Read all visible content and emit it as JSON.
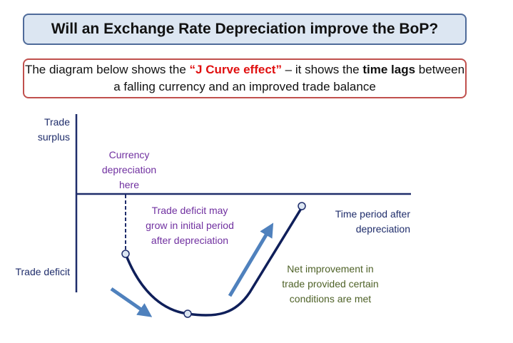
{
  "title": "Will an Exchange Rate Depreciation improve the BoP?",
  "subtitle": {
    "part1": "The diagram below shows the ",
    "highlight": "“J Curve effect”",
    "part2": " – it shows the ",
    "bold": "time lags",
    "part3": " between a falling currency and an improved trade balance"
  },
  "labels": {
    "surplus": "Trade surplus",
    "deficit": "Trade deficit",
    "currency": "Currency depreciation here",
    "deficit_grow": "Trade deficit may grow in initial period after depreciation",
    "time": "Time period after depreciation",
    "net": "Net improvement in trade provided certain conditions are met"
  },
  "colors": {
    "axis": "#1f2d6b",
    "curve": "#0f1f5a",
    "arrow": "#4f81bd",
    "purple": "#7030a0",
    "olive": "#4f6228",
    "red": "#e01010"
  }
}
